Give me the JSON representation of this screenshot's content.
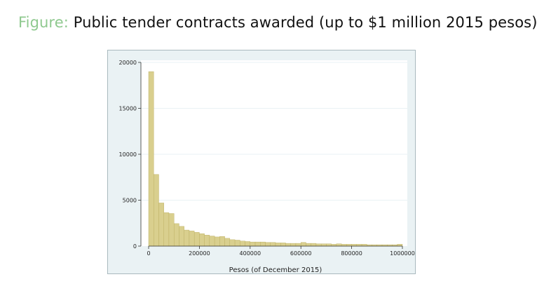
{
  "figure": {
    "label": "Figure:",
    "caption": "Public tender contracts awarded (up to $1 million 2015 pesos)"
  },
  "chart_data": {
    "type": "bar",
    "xlabel": "Pesos (of December 2015)",
    "ylabel": "",
    "xlim": [
      0,
      1000000
    ],
    "ylim": [
      0,
      20000
    ],
    "xticks": [
      0,
      200000,
      400000,
      600000,
      800000,
      1000000
    ],
    "xtick_labels": [
      "0",
      "200000",
      "400000",
      "600000",
      "800000",
      "1000000"
    ],
    "yticks": [
      0,
      5000,
      10000,
      15000,
      20000
    ],
    "ytick_labels": [
      "0",
      "5000",
      "10000",
      "15000",
      "20000"
    ],
    "grid": true,
    "bin_width": 20000,
    "bin_starts": [
      0,
      20000,
      40000,
      60000,
      80000,
      100000,
      120000,
      140000,
      160000,
      180000,
      200000,
      220000,
      240000,
      260000,
      280000,
      300000,
      320000,
      340000,
      360000,
      380000,
      400000,
      420000,
      440000,
      460000,
      480000,
      500000,
      520000,
      540000,
      560000,
      580000,
      600000,
      620000,
      640000,
      660000,
      680000,
      700000,
      720000,
      740000,
      760000,
      780000,
      800000,
      820000,
      840000,
      860000,
      880000,
      900000,
      920000,
      940000,
      960000,
      980000
    ],
    "values": [
      19000,
      7800,
      4700,
      3650,
      3550,
      2450,
      2150,
      1750,
      1650,
      1500,
      1350,
      1200,
      1100,
      1000,
      1050,
      850,
      700,
      650,
      550,
      500,
      450,
      450,
      450,
      400,
      400,
      350,
      350,
      300,
      300,
      300,
      400,
      300,
      300,
      250,
      250,
      250,
      200,
      250,
      200,
      200,
      200,
      200,
      200,
      150,
      150,
      150,
      150,
      150,
      150,
      200
    ],
    "colors": {
      "bar_fill": "#d9cf8e",
      "bar_stroke": "#b8ab5c",
      "plot_bg": "#ffffff",
      "outer_bg": "#eaf2f4",
      "grid": "#eaf2f4"
    }
  }
}
